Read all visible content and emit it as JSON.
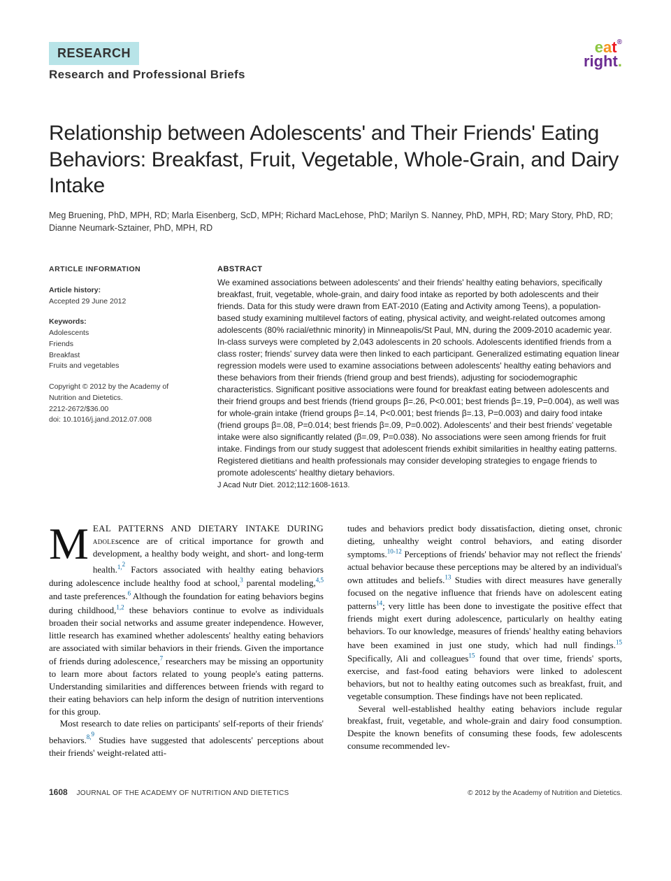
{
  "header": {
    "section": "RESEARCH",
    "subsection": "Research and Professional Briefs"
  },
  "logo": {
    "line1_parts": [
      "e",
      "a",
      "t"
    ],
    "line2": "right",
    "registered": "®",
    "dot": "."
  },
  "title": "Relationship between Adolescents' and Their Friends' Eating Behaviors: Breakfast, Fruit, Vegetable, Whole-Grain, and Dairy Intake",
  "authors": "Meg Bruening, PhD, MPH, RD; Marla Eisenberg, ScD, MPH; Richard MacLehose, PhD; Marilyn S. Nanney, PhD, MPH, RD; Mary Story, PhD, RD; Dianne Neumark-Sztainer, PhD, MPH, RD",
  "article_info": {
    "heading": "ARTICLE INFORMATION",
    "history_label": "Article history:",
    "history_text": "Accepted 29 June 2012",
    "keywords_label": "Keywords:",
    "keywords": [
      "Adolescents",
      "Friends",
      "Breakfast",
      "Fruits and vegetables"
    ],
    "copyright": "Copyright © 2012 by the Academy of Nutrition and Dietetics.",
    "issn": "2212-2672/$36.00",
    "doi": "doi: 10.1016/j.jand.2012.07.008"
  },
  "abstract": {
    "heading": "ABSTRACT",
    "text": "We examined associations between adolescents' and their friends' healthy eating behaviors, specifically breakfast, fruit, vegetable, whole-grain, and dairy food intake as reported by both adolescents and their friends. Data for this study were drawn from EAT-2010 (Eating and Activity among Teens), a population-based study examining multilevel factors of eating, physical activity, and weight-related outcomes among adolescents (80% racial/ethnic minority) in Minneapolis/St Paul, MN, during the 2009-2010 academic year. In-class surveys were completed by 2,043 adolescents in 20 schools. Adolescents identified friends from a class roster; friends' survey data were then linked to each participant. Generalized estimating equation linear regression models were used to examine associations between adolescents' healthy eating behaviors and these behaviors from their friends (friend group and best friends), adjusting for sociodemographic characteristics. Significant positive associations were found for breakfast eating between adolescents and their friend groups and best friends (friend groups β=.26, P<0.001; best friends β=.19, P=0.004), as well was for whole-grain intake (friend groups β=.14, P<0.001; best friends β=.13, P=0.003) and dairy food intake (friend groups β=.08, P=0.014; best friends β=.09, P=0.002). Adolescents' and their best friends' vegetable intake were also significantly related (β=.09, P=0.038). No associations were seen among friends for fruit intake. Findings from our study suggest that adolescent friends exhibit similarities in healthy eating patterns. Registered dietitians and health professionals may consider developing strategies to engage friends to promote adolescents' healthy dietary behaviors.",
    "citation": "J Acad Nutr Diet. 2012;112:1608-1613."
  },
  "body": {
    "dropcap": "M",
    "left_p1": "EAL PATTERNS AND DIETARY INTAKE DURING adolescence are of critical importance for growth and development, a healthy body weight, and short- and long-term health.1,2 Factors associated with healthy eating behaviors during adolescence include healthy food at school,3 parental modeling,4,5 and taste preferences.6 Although the foundation for eating behaviors begins during childhood,1,2 these behaviors continue to evolve as individuals broaden their social networks and assume greater independence. However, little research has examined whether adolescents' healthy eating behaviors are associated with similar behaviors in their friends. Given the importance of friends during adolescence,7 researchers may be missing an opportunity to learn more about factors related to young people's eating patterns. Understanding similarities and differences between friends with regard to their eating behaviors can help inform the design of nutrition interventions for this group.",
    "left_p2": "Most research to date relies on participants' self-reports of their friends' behaviors.8,9 Studies have suggested that adolescents' perceptions about their friends' weight-related atti-",
    "right_p1": "tudes and behaviors predict body dissatisfaction, dieting onset, chronic dieting, unhealthy weight control behaviors, and eating disorder symptoms.10-12 Perceptions of friends' behavior may not reflect the friends' actual behavior because these perceptions may be altered by an individual's own attitudes and beliefs.13 Studies with direct measures have generally focused on the negative influence that friends have on adolescent eating patterns14; very little has been done to investigate the positive effect that friends might exert during adolescence, particularly on healthy eating behaviors. To our knowledge, measures of friends' healthy eating behaviors have been examined in just one study, which had null findings.15 Specifically, Ali and colleagues15 found that over time, friends' sports, exercise, and fast-food eating behaviors were linked to adolescent behaviors, but not to healthy eating outcomes such as breakfast, fruit, and vegetable consumption. These findings have not been replicated.",
    "right_p2": "Several well-established healthy eating behaviors include regular breakfast, fruit, vegetable, and whole-grain and dairy food consumption. Despite the known benefits of consuming these foods, few adolescents consume recommended lev-"
  },
  "footer": {
    "page": "1608",
    "journal": "JOURNAL OF THE ACADEMY OF NUTRITION AND DIETETICS",
    "copyright": "© 2012 by the Academy of Nutrition and Dietetics."
  },
  "colors": {
    "header_bg": "#b8e4e8",
    "sup_link": "#0066a4",
    "logo_green": "#8cc63f",
    "logo_orange": "#f7941e",
    "logo_red": "#ed1c24",
    "logo_purple": "#6b2c91"
  }
}
